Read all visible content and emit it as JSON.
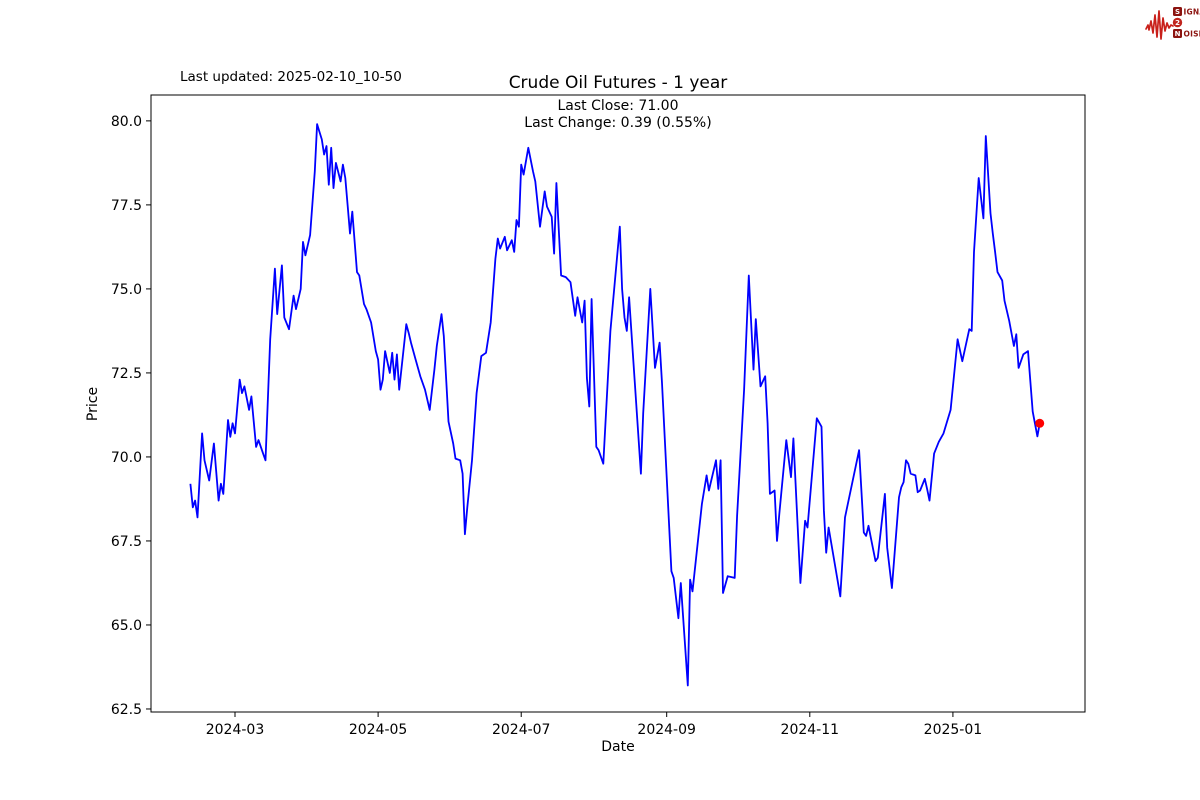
{
  "header": {
    "last_updated": "Last updated: 2025-02-10_10-50"
  },
  "logo": {
    "name": "signal-2-noise",
    "waveform_color": "#c9201a",
    "dark_color": "#8c1410",
    "circle_color": "#c0241d",
    "row1_boxletter": "S",
    "row1_rest": "IGNAL",
    "row2_letter": "2",
    "row3_boxletter": "N",
    "row3_rest": "OISE"
  },
  "chart_data": {
    "type": "line",
    "title": "Crude Oil Futures - 1 year",
    "annotation_line1": "Last Close: 71.00",
    "annotation_line2": "Last Change: 0.39 (0.55%)",
    "xlabel": "Date",
    "ylabel": "Price",
    "line_color": "#0000ff",
    "marker_color": "#ff0000",
    "grid": false,
    "legend": "none",
    "start_date": "2024-02-11",
    "x_ticks": [
      {
        "label": "2024-03",
        "day": 19
      },
      {
        "label": "2024-05",
        "day": 80
      },
      {
        "label": "2024-07",
        "day": 141
      },
      {
        "label": "2024-09",
        "day": 203
      },
      {
        "label": "2024-11",
        "day": 264
      },
      {
        "label": "2025-01",
        "day": 325
      }
    ],
    "y_ticks": [
      {
        "label": "62.5",
        "value": 62.5
      },
      {
        "label": "65.0",
        "value": 65.0
      },
      {
        "label": "67.5",
        "value": 67.5
      },
      {
        "label": "70.0",
        "value": 70.0
      },
      {
        "label": "72.5",
        "value": 72.5
      },
      {
        "label": "75.0",
        "value": 75.0
      },
      {
        "label": "77.5",
        "value": 77.5
      },
      {
        "label": "80.0",
        "value": 80.0
      }
    ],
    "xlim_days": [
      -16.8,
      381.3
    ],
    "ylim": [
      62.41,
      80.77
    ],
    "last_close": 71.0,
    "last_change": 0.39,
    "last_change_pct": "0.55%",
    "points": [
      [
        0,
        69.2
      ],
      [
        1,
        68.5
      ],
      [
        2,
        68.7
      ],
      [
        3,
        68.2
      ],
      [
        5,
        70.7
      ],
      [
        6,
        69.9
      ],
      [
        8,
        69.3
      ],
      [
        10,
        70.4
      ],
      [
        12,
        68.7
      ],
      [
        13,
        69.2
      ],
      [
        14,
        68.9
      ],
      [
        16,
        71.1
      ],
      [
        17,
        70.6
      ],
      [
        18,
        71.0
      ],
      [
        19,
        70.7
      ],
      [
        21,
        72.3
      ],
      [
        22,
        71.9
      ],
      [
        23,
        72.1
      ],
      [
        25,
        71.4
      ],
      [
        26,
        71.8
      ],
      [
        28,
        70.3
      ],
      [
        29,
        70.5
      ],
      [
        31,
        70.1
      ],
      [
        32,
        69.9
      ],
      [
        34,
        73.5
      ],
      [
        36,
        75.6
      ],
      [
        37,
        74.25
      ],
      [
        39,
        75.7
      ],
      [
        40,
        74.15
      ],
      [
        42,
        73.8
      ],
      [
        44,
        74.8
      ],
      [
        45,
        74.4
      ],
      [
        47,
        75.0
      ],
      [
        48,
        76.4
      ],
      [
        49,
        76.0
      ],
      [
        51,
        76.6
      ],
      [
        53,
        78.5
      ],
      [
        54,
        79.9
      ],
      [
        56,
        79.45
      ],
      [
        57,
        79.0
      ],
      [
        58,
        79.25
      ],
      [
        59,
        78.1
      ],
      [
        60,
        79.2
      ],
      [
        61,
        78.0
      ],
      [
        62,
        78.75
      ],
      [
        64,
        78.2
      ],
      [
        65,
        78.7
      ],
      [
        66,
        78.3
      ],
      [
        67,
        77.5
      ],
      [
        68,
        76.65
      ],
      [
        69,
        77.3
      ],
      [
        71,
        75.5
      ],
      [
        72,
        75.4
      ],
      [
        74,
        74.55
      ],
      [
        75,
        74.4
      ],
      [
        77,
        74.0
      ],
      [
        79,
        73.15
      ],
      [
        80,
        72.9
      ],
      [
        81,
        72.0
      ],
      [
        82,
        72.3
      ],
      [
        83,
        73.15
      ],
      [
        85,
        72.5
      ],
      [
        86,
        73.1
      ],
      [
        87,
        72.3
      ],
      [
        88,
        73.05
      ],
      [
        89,
        72.0
      ],
      [
        92,
        73.95
      ],
      [
        93,
        73.7
      ],
      [
        94,
        73.4
      ],
      [
        96,
        72.9
      ],
      [
        98,
        72.4
      ],
      [
        100,
        72.0
      ],
      [
        102,
        71.4
      ],
      [
        104,
        72.6
      ],
      [
        105,
        73.3
      ],
      [
        107,
        74.25
      ],
      [
        108,
        73.6
      ],
      [
        110,
        71.05
      ],
      [
        112,
        70.4
      ],
      [
        113,
        69.95
      ],
      [
        115,
        69.9
      ],
      [
        116,
        69.5
      ],
      [
        117,
        67.7
      ],
      [
        118,
        68.5
      ],
      [
        120,
        69.9
      ],
      [
        122,
        71.9
      ],
      [
        124,
        73.0
      ],
      [
        126,
        73.1
      ],
      [
        128,
        74.0
      ],
      [
        130,
        75.9
      ],
      [
        131,
        76.5
      ],
      [
        132,
        76.2
      ],
      [
        134,
        76.55
      ],
      [
        135,
        76.15
      ],
      [
        137,
        76.45
      ],
      [
        138,
        76.1
      ],
      [
        139,
        77.05
      ],
      [
        140,
        76.85
      ],
      [
        141,
        78.7
      ],
      [
        142,
        78.4
      ],
      [
        144,
        79.2
      ],
      [
        146,
        78.5
      ],
      [
        147,
        78.2
      ],
      [
        149,
        76.85
      ],
      [
        151,
        77.9
      ],
      [
        152,
        77.45
      ],
      [
        154,
        77.15
      ],
      [
        155,
        76.05
      ],
      [
        156,
        78.15
      ],
      [
        158,
        75.4
      ],
      [
        160,
        75.35
      ],
      [
        162,
        75.2
      ],
      [
        164,
        74.2
      ],
      [
        165,
        74.75
      ],
      [
        167,
        74.0
      ],
      [
        168,
        74.65
      ],
      [
        169,
        72.35
      ],
      [
        170,
        71.5
      ],
      [
        171,
        74.7
      ],
      [
        173,
        70.3
      ],
      [
        174,
        70.2
      ],
      [
        176,
        69.8
      ],
      [
        179,
        73.75
      ],
      [
        183,
        76.85
      ],
      [
        184,
        75.0
      ],
      [
        185,
        74.15
      ],
      [
        186,
        73.75
      ],
      [
        187,
        74.75
      ],
      [
        192,
        69.5
      ],
      [
        193,
        71.3
      ],
      [
        196,
        75.0
      ],
      [
        198,
        72.65
      ],
      [
        200,
        73.4
      ],
      [
        201,
        72.2
      ],
      [
        203,
        69.4
      ],
      [
        205,
        66.6
      ],
      [
        206,
        66.4
      ],
      [
        208,
        65.2
      ],
      [
        209,
        66.25
      ],
      [
        212,
        63.2
      ],
      [
        213,
        66.35
      ],
      [
        214,
        66.0
      ],
      [
        218,
        68.6
      ],
      [
        220,
        69.45
      ],
      [
        221,
        69.0
      ],
      [
        224,
        69.9
      ],
      [
        225,
        69.05
      ],
      [
        226,
        69.9
      ],
      [
        227,
        65.95
      ],
      [
        229,
        66.45
      ],
      [
        232,
        66.4
      ],
      [
        233,
        68.25
      ],
      [
        236,
        72.0
      ],
      [
        238,
        75.4
      ],
      [
        240,
        72.6
      ],
      [
        241,
        74.1
      ],
      [
        243,
        72.1
      ],
      [
        245,
        72.4
      ],
      [
        246,
        71.0
      ],
      [
        247,
        68.9
      ],
      [
        249,
        69.0
      ],
      [
        250,
        67.5
      ],
      [
        251,
        68.3
      ],
      [
        254,
        70.5
      ],
      [
        256,
        69.4
      ],
      [
        257,
        70.55
      ],
      [
        260,
        66.25
      ],
      [
        262,
        68.1
      ],
      [
        263,
        67.9
      ],
      [
        267,
        71.15
      ],
      [
        269,
        70.9
      ],
      [
        270,
        68.4
      ],
      [
        271,
        67.15
      ],
      [
        272,
        67.9
      ],
      [
        277,
        65.85
      ],
      [
        279,
        68.2
      ],
      [
        285,
        70.2
      ],
      [
        287,
        67.75
      ],
      [
        288,
        67.65
      ],
      [
        289,
        67.95
      ],
      [
        290,
        67.6
      ],
      [
        292,
        66.9
      ],
      [
        293,
        67.0
      ],
      [
        296,
        68.9
      ],
      [
        297,
        67.3
      ],
      [
        299,
        66.1
      ],
      [
        302,
        68.8
      ],
      [
        303,
        69.1
      ],
      [
        304,
        69.25
      ],
      [
        305,
        69.9
      ],
      [
        306,
        69.8
      ],
      [
        307,
        69.5
      ],
      [
        309,
        69.45
      ],
      [
        310,
        68.95
      ],
      [
        311,
        69.0
      ],
      [
        313,
        69.35
      ],
      [
        314,
        69.05
      ],
      [
        315,
        68.7
      ],
      [
        317,
        70.1
      ],
      [
        319,
        70.45
      ],
      [
        321,
        70.7
      ],
      [
        324,
        71.4
      ],
      [
        327,
        73.5
      ],
      [
        329,
        72.85
      ],
      [
        332,
        73.8
      ],
      [
        333,
        73.75
      ],
      [
        334,
        76.1
      ],
      [
        336,
        78.3
      ],
      [
        338,
        77.1
      ],
      [
        339,
        79.55
      ],
      [
        341,
        77.25
      ],
      [
        342,
        76.65
      ],
      [
        343,
        76.1
      ],
      [
        344,
        75.5
      ],
      [
        346,
        75.25
      ],
      [
        347,
        74.65
      ],
      [
        349,
        74.05
      ],
      [
        351,
        73.3
      ],
      [
        352,
        73.65
      ],
      [
        353,
        72.65
      ],
      [
        355,
        73.05
      ],
      [
        357,
        73.15
      ],
      [
        359,
        71.35
      ],
      [
        361,
        70.61
      ],
      [
        362,
        71.0
      ]
    ]
  }
}
